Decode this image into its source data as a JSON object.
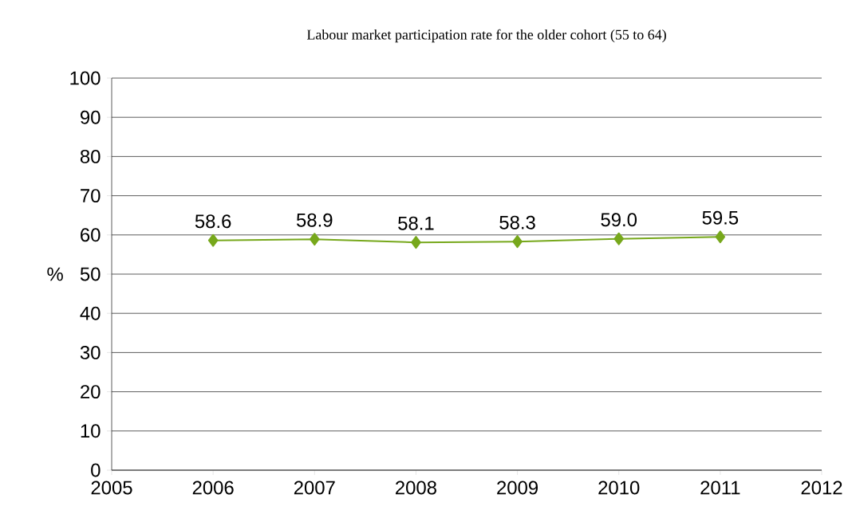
{
  "chart_data": {
    "type": "line",
    "title": "Labour market participation rate for the older cohort (55 to 64)",
    "ylabel": "%",
    "x": [
      2006,
      2007,
      2008,
      2009,
      2010,
      2011
    ],
    "series": [
      {
        "color": "#77a81c",
        "values": [
          58.6,
          58.9,
          58.1,
          58.3,
          59.0,
          59.5
        ],
        "value_labels": [
          "58.6",
          "58.9",
          "58.1",
          "58.3",
          "59.0",
          "59.5"
        ]
      }
    ],
    "xlim": [
      2005,
      2012
    ],
    "xticks": [
      2005,
      2006,
      2007,
      2008,
      2009,
      2010,
      2011,
      2012
    ],
    "ylim": [
      0,
      100
    ],
    "yticks": [
      0,
      10,
      20,
      30,
      40,
      50,
      60,
      70,
      80,
      90,
      100
    ],
    "grid": "y",
    "marker": "diamond",
    "line_style": "solid"
  }
}
